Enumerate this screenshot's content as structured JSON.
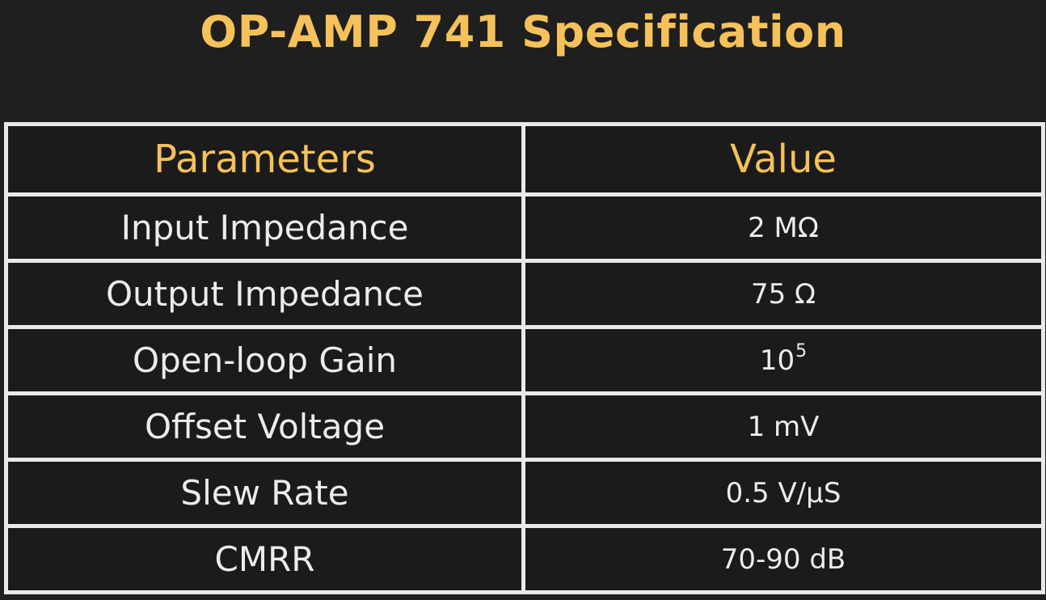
{
  "title": "OP-AMP 741 Specification",
  "table": {
    "headers": {
      "parameter": "Parameters",
      "value": "Value"
    },
    "rows": [
      {
        "parameter": "Input Impedance",
        "value": "2 MΩ"
      },
      {
        "parameter": "Output Impedance",
        "value": "75 Ω"
      },
      {
        "parameter": "Open-loop Gain",
        "value_base": "10",
        "value_exponent": "5"
      },
      {
        "parameter": "Offset Voltage",
        "value": "1 mV"
      },
      {
        "parameter": "Slew Rate",
        "value": "0.5 V/µS"
      },
      {
        "parameter": "CMRR",
        "value": "70-90 dB"
      }
    ]
  },
  "colors": {
    "background": "#1f1f1f",
    "accent_gold": "#f5c15a",
    "grid_lines": "#e9e9e9",
    "body_text": "#ececec"
  }
}
